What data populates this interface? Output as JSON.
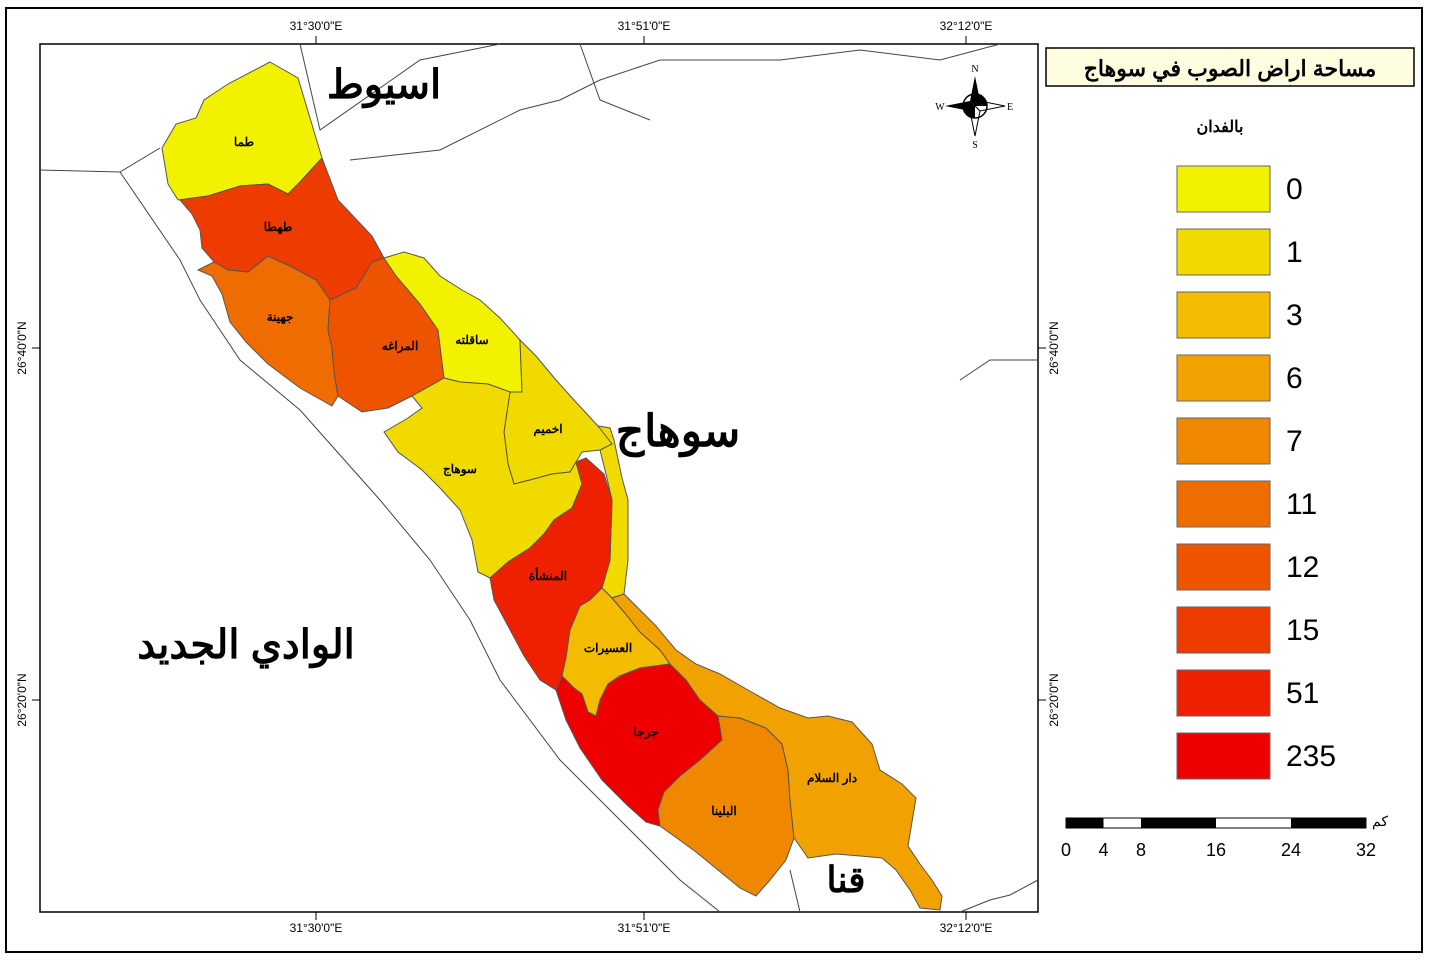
{
  "map": {
    "title": "مساحة اراض الصوب في سوهاج",
    "unit": "بالفدان",
    "coords": {
      "lon": [
        "31°30'0\"E",
        "31°51'0\"E",
        "32°12'0\"E"
      ],
      "lat": [
        "26°40'0\"N",
        "26°20'0\"N"
      ]
    },
    "north_arrow": {
      "n": "N",
      "s": "S",
      "e": "E",
      "w": "W"
    },
    "regions": {
      "assiut": "اسيوط",
      "sohag": "سوهاج",
      "new_valley": "الوادي الجديد",
      "qena": "قنا"
    },
    "districts": [
      {
        "id": "tama",
        "name": "طما",
        "value": 0
      },
      {
        "id": "tahta",
        "name": "طهطا",
        "value": 15
      },
      {
        "id": "juhayna",
        "name": "جهينة",
        "value": 11
      },
      {
        "id": "maragha",
        "name": "المراغه",
        "value": 12
      },
      {
        "id": "saqulta",
        "name": "ساقلته",
        "value": 0
      },
      {
        "id": "akhmim",
        "name": "اخميم",
        "value": 1
      },
      {
        "id": "sohag",
        "name": "سوهاج",
        "value": 1
      },
      {
        "id": "munshaa",
        "name": "المنشأة",
        "value": 51
      },
      {
        "id": "usayrat",
        "name": "العسيرات",
        "value": 3
      },
      {
        "id": "girga",
        "name": "جرجا",
        "value": 235
      },
      {
        "id": "balyana",
        "name": "البلينا",
        "value": 7
      },
      {
        "id": "dar_alsalam",
        "name": "دار السلام",
        "value": 6
      }
    ],
    "legend": [
      {
        "label": "0",
        "color": "#f2f200"
      },
      {
        "label": "1",
        "color": "#f0da00"
      },
      {
        "label": "3",
        "color": "#f3bc00"
      },
      {
        "label": "6",
        "color": "#f2a200"
      },
      {
        "label": "7",
        "color": "#f08700"
      },
      {
        "label": "11",
        "color": "#ef6d00"
      },
      {
        "label": "12",
        "color": "#ee5300"
      },
      {
        "label": "15",
        "color": "#ee3b00"
      },
      {
        "label": "51",
        "color": "#ee2000"
      },
      {
        "label": "235",
        "color": "#ee0000"
      }
    ],
    "scale": {
      "unit": "كم",
      "ticks": [
        "0",
        "4",
        "8",
        "16",
        "24",
        "32"
      ]
    }
  }
}
